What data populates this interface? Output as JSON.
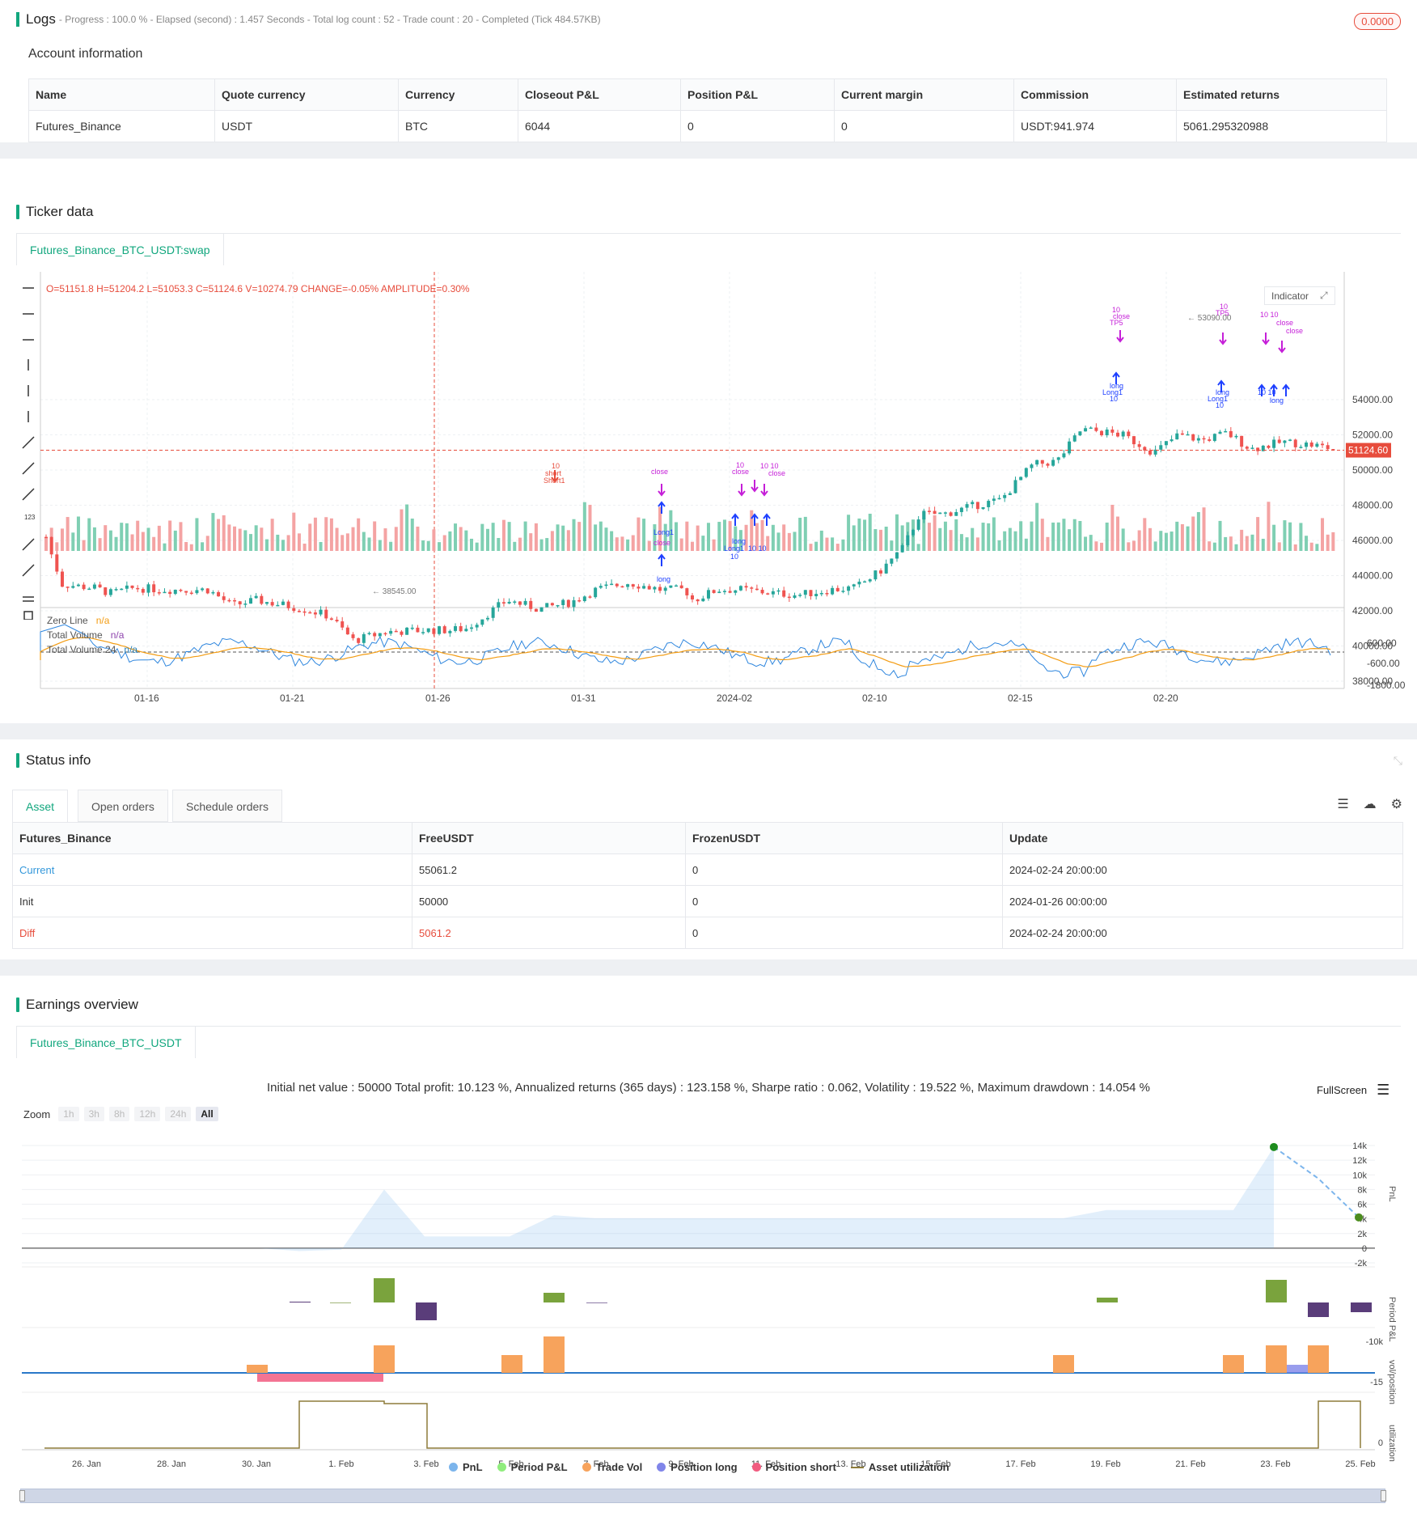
{
  "logs": {
    "title": "Logs",
    "summary": "- Progress : 100.0 % - Elapsed (second) : 1.457  Seconds - Total log count : 52 - Trade count : 20 - Completed (Tick 484.57KB)",
    "badge": "0.0000"
  },
  "account": {
    "title": "Account information",
    "headers": [
      "Name",
      "Quote currency",
      "Currency",
      "Closeout P&L",
      "Position P&L",
      "Current margin",
      "Commission",
      "Estimated returns"
    ],
    "row": [
      "Futures_Binance",
      "USDT",
      "BTC",
      "6044",
      "0",
      "0",
      "USDT:941.974",
      "5061.295320988"
    ]
  },
  "ticker": {
    "title": "Ticker data",
    "tab": "Futures_Binance_BTC_USDT:swap",
    "ohlc": "O=51151.8 H=51204.2 L=51053.3 C=51124.6 V=10274.79 CHANGE=-0.05% AMPLITUDE=0.30%",
    "indicator_btn": "Indicator",
    "price_ticks": [
      "54000.00",
      "52000.00",
      "50000.00",
      "48000.00",
      "46000.00",
      "44000.00",
      "42000.00",
      "40000.00",
      "38000.00"
    ],
    "current_price": "51124.60",
    "high_label": "53090.00",
    "low_label": "38545.00",
    "osc_ticks": [
      "600.00",
      "-600.00",
      "-1800.00"
    ],
    "legend": [
      {
        "name": "Zero Line",
        "value": "n/a",
        "color": "#f39c12"
      },
      {
        "name": "Total Volume",
        "value": "n/a",
        "color": "#8e44ad"
      },
      {
        "name": "Total Volume 24",
        "value": "n/a",
        "color": "#2980b9"
      }
    ],
    "x_ticks": [
      "01-16",
      "01-21",
      "01-26",
      "01-31",
      "2024-02",
      "02-10",
      "02-15",
      "02-20"
    ]
  },
  "status": {
    "title": "Status info",
    "tabs": [
      "Asset",
      "Open orders",
      "Schedule orders"
    ],
    "headers": [
      "Futures_Binance",
      "FreeUSDT",
      "FrozenUSDT",
      "Update"
    ],
    "rows": [
      [
        "Current",
        "55061.2",
        "0",
        "2024-02-24 20:00:00"
      ],
      [
        "Init",
        "50000",
        "0",
        "2024-01-26 00:00:00"
      ],
      [
        "Diff",
        "5061.2",
        "0",
        "2024-02-24 20:00:00"
      ]
    ]
  },
  "earnings": {
    "title": "Earnings overview",
    "tab": "Futures_Binance_BTC_USDT",
    "summary": "Initial net value : 50000 Total profit: 10.123 %, Annualized returns (365 days) : 123.158 %, Sharpe ratio : 0.062, Volatility : 19.522 %, Maximum drawdown : 14.054 %",
    "fullscreen": "FullScreen",
    "zoom_label": "Zoom",
    "zoom_buttons": [
      "1h",
      "3h",
      "8h",
      "12h",
      "24h",
      "All"
    ],
    "pnl_ticks": [
      "14k",
      "12k",
      "10k",
      "8k",
      "6k",
      "4k",
      "2k",
      "0",
      "-2k"
    ],
    "axis_names": [
      "PnL",
      "Period P&L",
      "vol/position",
      "utilization"
    ],
    "period_tick": "-10k",
    "vol_tick": "-15",
    "util_tick": "0",
    "x_ticks": [
      "26. Jan",
      "28. Jan",
      "30. Jan",
      "1. Feb",
      "3. Feb",
      "5. Feb",
      "7. Feb",
      "9. Feb",
      "11. Feb",
      "13. Feb",
      "15. Feb",
      "17. Feb",
      "19. Feb",
      "21. Feb",
      "23. Feb",
      "25. Feb"
    ],
    "legend": [
      {
        "name": "PnL",
        "color": "#7cb5ec"
      },
      {
        "name": "Period P&L",
        "color": "#90ed7d"
      },
      {
        "name": "Trade Vol",
        "color": "#f7a35c"
      },
      {
        "name": "Position long",
        "color": "#8085e9"
      },
      {
        "name": "Position short",
        "color": "#f15c80"
      },
      {
        "name": "Asset utilization",
        "color": "#8d7c3a"
      }
    ]
  }
}
